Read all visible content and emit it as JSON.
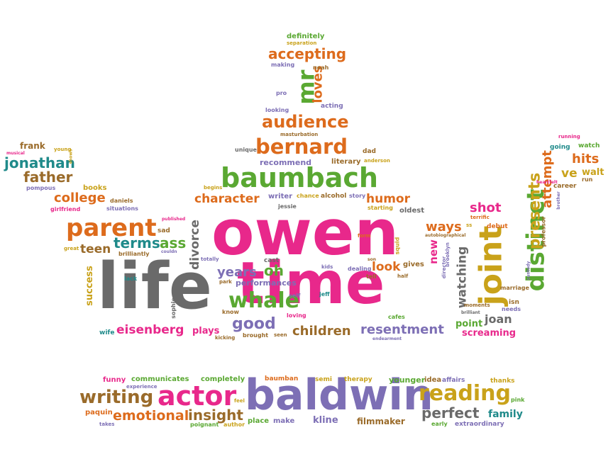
{
  "palette": {
    "pink": "#e8288b",
    "purple": "#7d6fb5",
    "green": "#5aa832",
    "orange": "#dd6b1c",
    "gold": "#c9a21a",
    "teal": "#1f8a8a",
    "gray": "#6a6a6a",
    "brown": "#9a6b2a"
  },
  "words": [
    {
      "t": "owen",
      "c": "pink"
    },
    {
      "t": "time",
      "c": "pink"
    },
    {
      "t": "life",
      "c": "gray"
    },
    {
      "t": "baldwin",
      "c": "purple"
    },
    {
      "t": "baumbach",
      "c": "green"
    },
    {
      "t": "actor",
      "c": "pink"
    },
    {
      "t": "reading",
      "c": "gold"
    },
    {
      "t": "writing",
      "c": "brown"
    },
    {
      "t": "bernard",
      "c": "orange"
    },
    {
      "t": "audience",
      "c": "orange"
    },
    {
      "t": "accepting",
      "c": "orange"
    },
    {
      "t": "parent",
      "c": "orange"
    },
    {
      "t": "whale",
      "c": "green"
    },
    {
      "t": "joint",
      "c": "gold"
    },
    {
      "t": "distinct",
      "c": "green"
    },
    {
      "t": "presents",
      "c": "gold"
    },
    {
      "t": "attempt",
      "c": "orange"
    },
    {
      "t": "mr",
      "c": "green"
    },
    {
      "t": "loves",
      "c": "orange"
    },
    {
      "t": "emotional",
      "c": "orange"
    },
    {
      "t": "insight",
      "c": "brown"
    },
    {
      "t": "perfect",
      "c": "gray"
    },
    {
      "t": "jonathan",
      "c": "teal"
    },
    {
      "t": "father",
      "c": "brown"
    },
    {
      "t": "college",
      "c": "orange"
    },
    {
      "t": "eisenberg",
      "c": "pink"
    },
    {
      "t": "good",
      "c": "purple"
    },
    {
      "t": "children",
      "c": "brown"
    },
    {
      "t": "resentment",
      "c": "purple"
    },
    {
      "t": "character",
      "c": "orange"
    },
    {
      "t": "humor",
      "c": "orange"
    },
    {
      "t": "terms",
      "c": "teal"
    },
    {
      "t": "ass",
      "c": "green"
    },
    {
      "t": "teen",
      "c": "brown"
    },
    {
      "t": "years",
      "c": "purple"
    },
    {
      "t": "oh",
      "c": "green"
    },
    {
      "t": "look",
      "c": "orange"
    },
    {
      "t": "ways",
      "c": "orange"
    },
    {
      "t": "shot",
      "c": "pink"
    },
    {
      "t": "hits",
      "c": "orange"
    },
    {
      "t": "ve",
      "c": "gold"
    },
    {
      "t": "walt",
      "c": "gold"
    },
    {
      "t": "family",
      "c": "teal"
    },
    {
      "t": "kline",
      "c": "purple"
    },
    {
      "t": "filmmaker",
      "c": "brown"
    },
    {
      "t": "joan",
      "c": "gray"
    },
    {
      "t": "point",
      "c": "green"
    },
    {
      "t": "screaming",
      "c": "pink"
    },
    {
      "t": "watching",
      "c": "gray"
    },
    {
      "t": "divorce",
      "c": "gray"
    },
    {
      "t": "success",
      "c": "gold"
    },
    {
      "t": "plays",
      "c": "pink"
    },
    {
      "t": "recommend",
      "c": "purple"
    },
    {
      "t": "definitely",
      "c": "green"
    },
    {
      "t": "frank",
      "c": "brown"
    },
    {
      "t": "new",
      "c": "pink"
    },
    {
      "t": "books",
      "c": "gold"
    },
    {
      "t": "performances",
      "c": "purple"
    },
    {
      "t": "funny",
      "c": "pink"
    },
    {
      "t": "communicates",
      "c": "green"
    },
    {
      "t": "completely",
      "c": "green"
    },
    {
      "t": "younger",
      "c": "green"
    },
    {
      "t": "therapy",
      "c": "gold"
    },
    {
      "t": "idea",
      "c": "brown"
    },
    {
      "t": "affairs",
      "c": "purple"
    },
    {
      "t": "thanks",
      "c": "gold"
    },
    {
      "t": "place",
      "c": "green"
    },
    {
      "t": "make",
      "c": "purple"
    },
    {
      "t": "paquin",
      "c": "orange"
    },
    {
      "t": "author",
      "c": "gold"
    },
    {
      "t": "poignant",
      "c": "green"
    },
    {
      "t": "takes",
      "c": "purple"
    },
    {
      "t": "experience",
      "c": "purple"
    },
    {
      "t": "feel",
      "c": "gold"
    },
    {
      "t": "baumban",
      "c": "orange"
    },
    {
      "t": "semi",
      "c": "gold"
    },
    {
      "t": "pink",
      "c": "green"
    },
    {
      "t": "early",
      "c": "green"
    },
    {
      "t": "extraordinary",
      "c": "purple"
    },
    {
      "t": "separation",
      "c": "gold"
    },
    {
      "t": "making",
      "c": "purple"
    },
    {
      "t": "noah",
      "c": "brown"
    },
    {
      "t": "pro",
      "c": "purple"
    },
    {
      "t": "looking",
      "c": "purple"
    },
    {
      "t": "acting",
      "c": "purple"
    },
    {
      "t": "masturbation",
      "c": "brown"
    },
    {
      "t": "unique",
      "c": "gray"
    },
    {
      "t": "dad",
      "c": "brown"
    },
    {
      "t": "literary",
      "c": "brown"
    },
    {
      "t": "anderson",
      "c": "gold"
    },
    {
      "t": "begins",
      "c": "gold"
    },
    {
      "t": "writer",
      "c": "purple"
    },
    {
      "t": "chance",
      "c": "gold"
    },
    {
      "t": "alcohol",
      "c": "brown"
    },
    {
      "t": "story",
      "c": "purple"
    },
    {
      "t": "jessie",
      "c": "gray"
    },
    {
      "t": "starting",
      "c": "gold"
    },
    {
      "t": "oldest",
      "c": "gray"
    },
    {
      "t": "cast",
      "c": "gray"
    },
    {
      "t": "form",
      "c": "orange"
    },
    {
      "t": "squid",
      "c": "gold"
    },
    {
      "t": "son",
      "c": "brown"
    },
    {
      "t": "gives",
      "c": "brown"
    },
    {
      "t": "tell",
      "c": "brown"
    },
    {
      "t": "half",
      "c": "brown"
    },
    {
      "t": "dealing",
      "c": "purple"
    },
    {
      "t": "kids",
      "c": "purple"
    },
    {
      "t": "self",
      "c": "purple"
    },
    {
      "t": "jeff",
      "c": "teal"
    },
    {
      "t": "park",
      "c": "brown"
    },
    {
      "t": "know",
      "c": "brown"
    },
    {
      "t": "loving",
      "c": "pink"
    },
    {
      "t": "seen",
      "c": "brown"
    },
    {
      "t": "brought",
      "c": "brown"
    },
    {
      "t": "kicking",
      "c": "brown"
    },
    {
      "t": "cafes",
      "c": "green"
    },
    {
      "t": "endearment",
      "c": "purple"
    },
    {
      "t": "totally",
      "c": "purple"
    },
    {
      "t": "wife",
      "c": "teal"
    },
    {
      "t": "sophie",
      "c": "gray"
    },
    {
      "t": "lack",
      "c": "teal"
    },
    {
      "t": "brilliantly",
      "c": "brown"
    },
    {
      "t": "great",
      "c": "gold"
    },
    {
      "t": "sad",
      "c": "brown"
    },
    {
      "t": "couldn",
      "c": "purple"
    },
    {
      "t": "published",
      "c": "pink"
    },
    {
      "t": "daniels",
      "c": "brown"
    },
    {
      "t": "situations",
      "c": "purple"
    },
    {
      "t": "girlfriend",
      "c": "pink"
    },
    {
      "t": "pompous",
      "c": "purple"
    },
    {
      "t": "musical",
      "c": "pink"
    },
    {
      "t": "young",
      "c": "gold"
    },
    {
      "t": "shows",
      "c": "gold"
    },
    {
      "t": "running",
      "c": "pink"
    },
    {
      "t": "going",
      "c": "teal"
    },
    {
      "t": "watch",
      "c": "green"
    },
    {
      "t": "career",
      "c": "brown"
    },
    {
      "t": "run",
      "c": "brown"
    },
    {
      "t": "heartfelt",
      "c": "pink"
    },
    {
      "t": "brother",
      "c": "purple"
    },
    {
      "t": "terrific",
      "c": "orange"
    },
    {
      "t": "debut",
      "c": "orange"
    },
    {
      "t": "autobiographical",
      "c": "brown"
    },
    {
      "t": "professor",
      "c": "brown"
    },
    {
      "t": "custody",
      "c": "purple"
    },
    {
      "t": "marriage",
      "c": "brown"
    },
    {
      "t": "isn",
      "c": "brown"
    },
    {
      "t": "needs",
      "c": "purple"
    },
    {
      "t": "moments",
      "c": "brown"
    },
    {
      "t": "brilliant",
      "c": "gray"
    },
    {
      "t": "director",
      "c": "purple"
    },
    {
      "t": "brooklyn",
      "c": "purple"
    },
    {
      "t": "ss",
      "c": "gold"
    }
  ]
}
